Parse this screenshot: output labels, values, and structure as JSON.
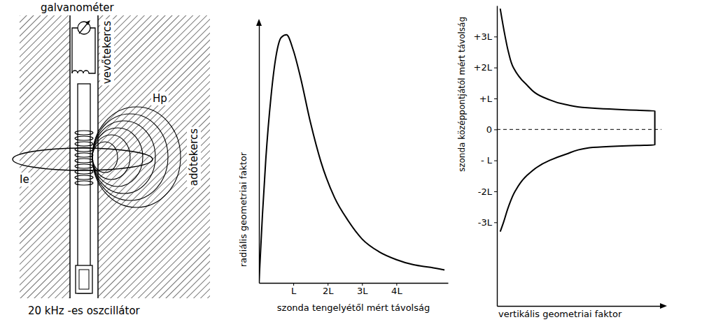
{
  "diagram": {
    "galvanometer": "galvanométer",
    "receiver_coil": "vevőtekercs",
    "transmitter_coil": "adótekercs",
    "primary_field": "Hp",
    "eddy_current": "Ie",
    "oscillator": "20 kHz -es oszcillátor"
  },
  "chart_data": [
    {
      "type": "line",
      "x_label": "szonda tengelyétől mért távolság",
      "y_label": "radiális geometriai faktor",
      "color": "#000000",
      "x": [
        0,
        0.1,
        0.2,
        0.35,
        0.5,
        0.65,
        0.8,
        1.0,
        1.2,
        1.5,
        1.8,
        2.2,
        2.6,
        3.0,
        3.5,
        4.0,
        4.5,
        5.0,
        5.4
      ],
      "values": [
        0,
        0.26,
        0.48,
        0.72,
        0.88,
        0.95,
        0.96,
        0.9,
        0.8,
        0.62,
        0.47,
        0.33,
        0.24,
        0.17,
        0.12,
        0.09,
        0.07,
        0.06,
        0.05
      ],
      "xlim": [
        0,
        5.5
      ],
      "ylim": [
        0,
        1
      ],
      "xticks": [
        {
          "value": 1,
          "label": "L"
        },
        {
          "value": 2,
          "label": "2L"
        },
        {
          "value": 3,
          "label": "3L"
        },
        {
          "value": 4,
          "label": "4L"
        }
      ],
      "tick_labels": "x"
    },
    {
      "type": "line",
      "x_label": "vertikális geometriai faktor",
      "y_label": "szonda középpontjától mért távolság",
      "color": "#000000",
      "x": [
        0.02,
        0.05,
        0.07,
        0.1,
        0.17,
        0.3,
        0.42,
        0.55,
        0.85,
        0.96,
        0.96,
        0.85,
        0.55,
        0.42,
        0.32,
        0.18,
        0.11,
        0.07,
        0.04,
        0.02
      ],
      "values": [
        3.9,
        3.0,
        2.5,
        2.0,
        1.5,
        1.0,
        0.8,
        0.7,
        0.62,
        0.6,
        -0.5,
        -0.52,
        -0.6,
        -0.8,
        -1.0,
        -1.5,
        -2.0,
        -2.5,
        -3.0,
        -3.3
      ],
      "xlim": [
        0,
        1
      ],
      "ylim": [
        -5.7,
        4
      ],
      "yticks": [
        {
          "value": 3,
          "label": "+3L"
        },
        {
          "value": 2,
          "label": "+2L"
        },
        {
          "value": 1,
          "label": "+L"
        },
        0,
        {
          "value": -1,
          "label": "- L"
        },
        {
          "value": -2,
          "label": "-2L"
        },
        {
          "value": -3,
          "label": "-3L"
        }
      ],
      "tick_labels": "y"
    }
  ]
}
